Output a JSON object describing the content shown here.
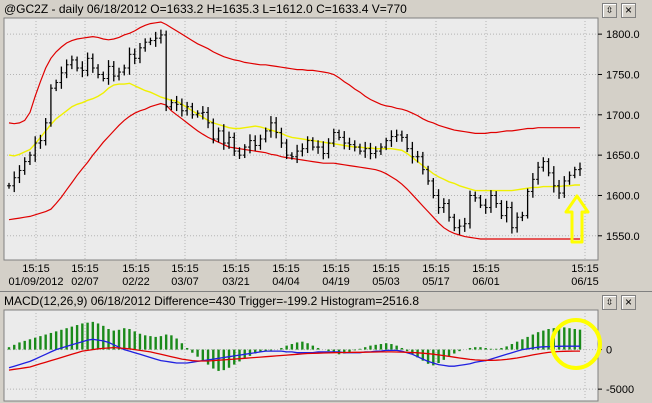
{
  "price_pane": {
    "header": "@GC2Z - daily 06/18/2012 O=1633.2 H=1635.3 L=1612.0 C=1633.4 V=770",
    "y_ticks": [
      "1800.0",
      "1750.0",
      "1700.0",
      "1650.0",
      "1600.0",
      "1550.0"
    ],
    "x_time_labels": [
      "15:15",
      "15:15",
      "15:15",
      "15:15",
      "15:15",
      "15:15",
      "15:15",
      "15:15",
      "15:15",
      "15:15",
      "15:15"
    ],
    "x_date_labels": [
      "01/09/2012",
      "02/07",
      "02/22",
      "03/07",
      "03/21",
      "04/04",
      "04/19",
      "05/03",
      "05/17",
      "06/01",
      "06/15"
    ]
  },
  "macd_pane": {
    "header": "MACD(12,26,9) 06/18/2012 Difference=430 Trigger=-199.2 Histogram=2516.8",
    "y_ticks": [
      "0",
      "-5000"
    ]
  },
  "window_buttons": {
    "restore": "⇳",
    "close": "×"
  },
  "colors": {
    "chart_bg": "#ebebeb",
    "grid": "#b4b4b4",
    "price_bar": "#000000",
    "bollinger_band": "#e00000",
    "moving_average": "#f0f000",
    "macd_line": "#2020e0",
    "trigger_line": "#e00000",
    "histogram": "#1a8a1a",
    "annotation": "#ffff00"
  },
  "chart_data": [
    {
      "type": "line",
      "title": "@GC2Z - daily",
      "ylim": [
        1520,
        1820
      ],
      "ticks": [
        1800,
        1750,
        1700,
        1650,
        1600,
        1550
      ],
      "series": [
        {
          "name": "Close",
          "values": [
            1612,
            1622,
            1631,
            1642,
            1650,
            1665,
            1668,
            1690,
            1733,
            1740,
            1752,
            1762,
            1768,
            1758,
            1755,
            1770,
            1758,
            1750,
            1745,
            1760,
            1748,
            1753,
            1758,
            1775,
            1770,
            1783,
            1790,
            1792,
            1795,
            1799,
            1710,
            1715,
            1713,
            1705,
            1710,
            1700,
            1702,
            1703,
            1690,
            1670,
            1680,
            1665,
            1672,
            1655,
            1650,
            1660,
            1668,
            1662,
            1670,
            1680,
            1690,
            1678,
            1665,
            1650,
            1648,
            1655,
            1658,
            1668,
            1660,
            1660,
            1652,
            1665,
            1678,
            1672,
            1665,
            1663,
            1660,
            1655,
            1658,
            1652,
            1655,
            1660,
            1668,
            1673,
            1675,
            1672,
            1658,
            1648,
            1648,
            1632,
            1618,
            1600,
            1585,
            1590,
            1573,
            1560,
            1562,
            1565,
            1600,
            1597,
            1588,
            1585,
            1600,
            1590,
            1575,
            1585,
            1560,
            1573,
            1575,
            1605,
            1620,
            1635,
            1642,
            1628,
            1612,
            1603,
            1618,
            1625,
            1632,
            1633
          ]
        },
        {
          "name": "Moving Average",
          "values": [
            1650,
            1649,
            1651,
            1654,
            1657,
            1664,
            1672,
            1680,
            1688,
            1695,
            1700,
            1705,
            1710,
            1713,
            1715,
            1718,
            1720,
            1723,
            1727,
            1733,
            1737,
            1738,
            1738,
            1739,
            1736,
            1733,
            1730,
            1728,
            1725,
            1722,
            1720,
            1718,
            1717,
            1713,
            1709,
            1705,
            1701,
            1697,
            1693,
            1690,
            1688,
            1686,
            1684,
            1683,
            1683,
            1684,
            1685,
            1686,
            1685,
            1683,
            1681,
            1679,
            1677,
            1674,
            1672,
            1671,
            1670,
            1669,
            1668,
            1667,
            1666,
            1665,
            1664,
            1663,
            1662,
            1661,
            1660,
            1660,
            1659,
            1659,
            1658,
            1658,
            1658,
            1658,
            1657,
            1656,
            1652,
            1647,
            1642,
            1637,
            1632,
            1627,
            1623,
            1620,
            1617,
            1615,
            1612,
            1610,
            1608,
            1606,
            1606,
            1606,
            1606,
            1606,
            1606,
            1606,
            1606,
            1607,
            1608,
            1609,
            1610,
            1610,
            1611,
            1611,
            1611,
            1611,
            1612,
            1612,
            1613,
            1613
          ]
        },
        {
          "name": "Upper Band",
          "values": [
            1690,
            1689,
            1690,
            1693,
            1703,
            1723,
            1741,
            1758,
            1770,
            1778,
            1784,
            1789,
            1792,
            1794,
            1795,
            1796,
            1797,
            1796,
            1794,
            1793,
            1794,
            1796,
            1799,
            1801,
            1804,
            1808,
            1811,
            1813,
            1814,
            1815,
            1812,
            1808,
            1804,
            1800,
            1796,
            1792,
            1788,
            1785,
            1782,
            1778,
            1775,
            1772,
            1770,
            1768,
            1767,
            1765,
            1764,
            1763,
            1762,
            1762,
            1761,
            1760,
            1759,
            1758,
            1757,
            1756,
            1756,
            1755,
            1755,
            1754,
            1753,
            1752,
            1750,
            1746,
            1741,
            1737,
            1732,
            1728,
            1723,
            1719,
            1716,
            1713,
            1711,
            1710,
            1708,
            1707,
            1705,
            1702,
            1699,
            1695,
            1692,
            1690,
            1687,
            1685,
            1683,
            1681,
            1680,
            1679,
            1678,
            1677,
            1677,
            1677,
            1678,
            1678,
            1679,
            1680,
            1680,
            1681,
            1682,
            1683,
            1683,
            1684,
            1684,
            1684,
            1684,
            1684,
            1684,
            1684,
            1684,
            1684
          ]
        },
        {
          "name": "Lower Band",
          "values": [
            1570,
            1571,
            1572,
            1573,
            1574,
            1576,
            1578,
            1580,
            1583,
            1590,
            1598,
            1607,
            1616,
            1625,
            1633,
            1641,
            1650,
            1658,
            1666,
            1673,
            1680,
            1687,
            1693,
            1698,
            1702,
            1705,
            1707,
            1710,
            1712,
            1714,
            1712,
            1705,
            1700,
            1695,
            1690,
            1685,
            1680,
            1676,
            1672,
            1669,
            1666,
            1663,
            1660,
            1659,
            1658,
            1657,
            1656,
            1655,
            1654,
            1653,
            1651,
            1650,
            1648,
            1647,
            1646,
            1645,
            1644,
            1643,
            1642,
            1641,
            1640,
            1640,
            1640,
            1639,
            1638,
            1637,
            1636,
            1635,
            1634,
            1633,
            1632,
            1630,
            1627,
            1623,
            1619,
            1614,
            1608,
            1601,
            1594,
            1587,
            1580,
            1573,
            1566,
            1560,
            1556,
            1553,
            1551,
            1549,
            1548,
            1547,
            1546,
            1546,
            1546,
            1546,
            1546,
            1546,
            1546,
            1546,
            1546,
            1546,
            1546,
            1546,
            1546,
            1546,
            1546,
            1546,
            1546,
            1546,
            1546,
            1546
          ]
        }
      ]
    },
    {
      "type": "bar",
      "title": "MACD(12,26,9)",
      "ylim": [
        -6500,
        5000
      ],
      "ticks": [
        0,
        -5000
      ],
      "series": [
        {
          "name": "Histogram",
          "values": [
            300,
            600,
            900,
            1100,
            1300,
            1500,
            1700,
            1900,
            2100,
            2300,
            2500,
            2700,
            2900,
            3100,
            3300,
            3400,
            3500,
            3300,
            3000,
            2600,
            2400,
            2500,
            2700,
            2600,
            2300,
            2000,
            1800,
            1700,
            1600,
            1700,
            1900,
            1800,
            1400,
            800,
            200,
            -400,
            -900,
            -1400,
            -1900,
            -2400,
            -2700,
            -2600,
            -2300,
            -1900,
            -1500,
            -1100,
            -800,
            -500,
            -300,
            -200,
            -100,
            0,
            200,
            500,
            700,
            900,
            1000,
            800,
            500,
            200,
            0,
            -200,
            -400,
            -600,
            -500,
            -300,
            -100,
            100,
            300,
            500,
            600,
            700,
            800,
            700,
            500,
            200,
            -200,
            -600,
            -1000,
            -1400,
            -1800,
            -2000,
            -1700,
            -1300,
            -900,
            -500,
            -200,
            0,
            200,
            300,
            300,
            200,
            100,
            100,
            200,
            400,
            700,
            1000,
            1300,
            1600,
            1900,
            2200,
            2400,
            2600,
            2700,
            2800,
            2800,
            2700,
            2600,
            2516.8
          ]
        },
        {
          "name": "Difference",
          "values": [
            -2300,
            -2100,
            -1900,
            -1700,
            -1500,
            -1200,
            -900,
            -600,
            -300,
            0,
            200,
            400,
            600,
            800,
            1000,
            1200,
            1300,
            1200,
            1100,
            900,
            600,
            300,
            0,
            -200,
            -400,
            -600,
            -800,
            -1000,
            -1200,
            -1400,
            -1500,
            -1600,
            -1700,
            -1700,
            -1700,
            -1600,
            -1500,
            -1400,
            -1300,
            -1200,
            -1100,
            -1000,
            -900,
            -800,
            -700,
            -600,
            -500,
            -400,
            -300,
            -200,
            -200,
            -200,
            -200,
            -300,
            -300,
            -400,
            -400,
            -400,
            -400,
            -300,
            -300,
            -300,
            -300,
            -300,
            -400,
            -400,
            -400,
            -400,
            -300,
            -300,
            -200,
            -200,
            -100,
            -100,
            -100,
            -200,
            -400,
            -600,
            -900,
            -1200,
            -1500,
            -1700,
            -1900,
            -2000,
            -2100,
            -2100,
            -2000,
            -1900,
            -1800,
            -1600,
            -1500,
            -1400,
            -1200,
            -1000,
            -800,
            -600,
            -400,
            -200,
            0,
            100,
            200,
            300,
            350,
            380,
            400,
            410,
            420,
            425,
            428,
            430
          ]
        },
        {
          "name": "Trigger",
          "values": [
            -2600,
            -2500,
            -2400,
            -2300,
            -2200,
            -2000,
            -1800,
            -1600,
            -1400,
            -1200,
            -1000,
            -800,
            -600,
            -400,
            -200,
            -100,
            0,
            100,
            150,
            200,
            250,
            200,
            150,
            100,
            0,
            -100,
            -200,
            -300,
            -450,
            -600,
            -750,
            -900,
            -1050,
            -1200,
            -1300,
            -1400,
            -1450,
            -1450,
            -1450,
            -1400,
            -1350,
            -1300,
            -1250,
            -1200,
            -1150,
            -1100,
            -1050,
            -1000,
            -950,
            -900,
            -850,
            -800,
            -750,
            -700,
            -650,
            -600,
            -550,
            -500,
            -480,
            -460,
            -440,
            -420,
            -400,
            -380,
            -370,
            -360,
            -350,
            -340,
            -330,
            -320,
            -310,
            -300,
            -300,
            -300,
            -310,
            -320,
            -340,
            -370,
            -410,
            -460,
            -520,
            -590,
            -670,
            -760,
            -860,
            -960,
            -1060,
            -1160,
            -1240,
            -1300,
            -1340,
            -1360,
            -1360,
            -1340,
            -1300,
            -1240,
            -1160,
            -1060,
            -940,
            -810,
            -680,
            -560,
            -450,
            -360,
            -290,
            -240,
            -215,
            -205,
            -200,
            -199.2
          ]
        }
      ]
    }
  ]
}
